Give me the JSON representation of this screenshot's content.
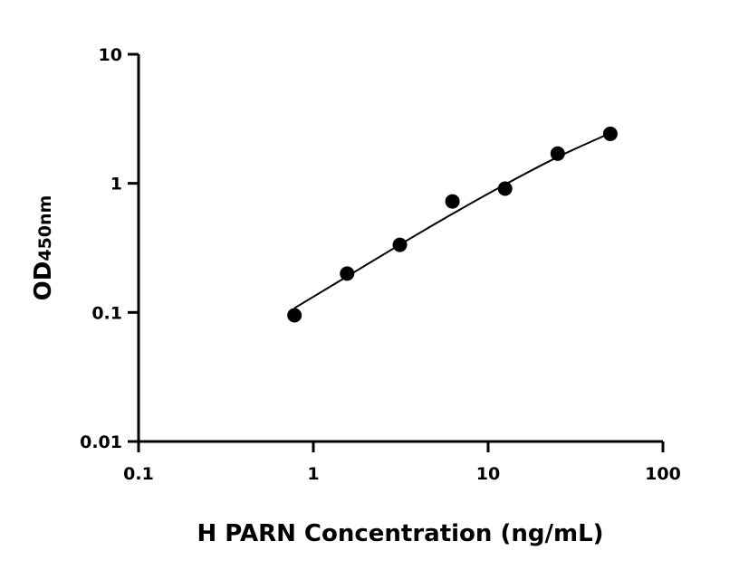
{
  "chart_data": {
    "type": "scatter",
    "xlabel": "H PARN Concentration (ng/mL)",
    "ylabel": "OD",
    "ylabel_subscript": "450nm",
    "xscale": "log",
    "yscale": "log",
    "xlim": [
      0.1,
      100
    ],
    "ylim": [
      0.01,
      10
    ],
    "xticks": [
      "0.1",
      "1",
      "10",
      "100"
    ],
    "yticks": [
      "0.01",
      "0.1",
      "1",
      "10"
    ],
    "grid": false,
    "point_color": "#000000",
    "series": [
      {
        "x": [
          0.78,
          1.56,
          3.125,
          6.25,
          12.5,
          25,
          50
        ],
        "y": [
          0.095,
          0.2,
          0.334,
          0.725,
          0.91,
          1.7,
          2.42
        ]
      }
    ],
    "fit_curve": {
      "x": [
        0.78,
        1.56,
        3.125,
        6.25,
        12.5,
        25,
        50
      ],
      "y": [
        0.108,
        0.19,
        0.335,
        0.58,
        0.98,
        1.6,
        2.45
      ]
    }
  }
}
